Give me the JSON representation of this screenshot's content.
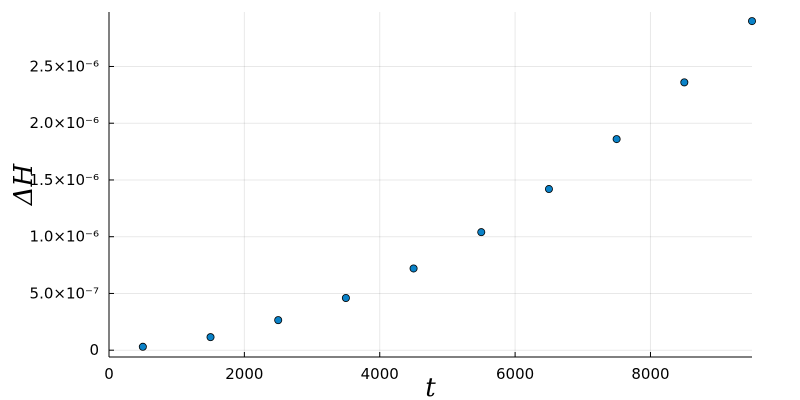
{
  "chart_data": {
    "type": "scatter",
    "title": "",
    "xlabel": "t",
    "ylabel": "ΔH",
    "xlim": [
      0,
      9500
    ],
    "ylim": [
      -6e-08,
      2.98e-06
    ],
    "grid": true,
    "legend": "none",
    "series": [
      {
        "x": [
          500,
          1500,
          2500,
          3500,
          4500,
          5500,
          6500,
          7500,
          8500,
          9500
        ],
        "y": [
          3e-08,
          1.15e-07,
          2.65e-07,
          4.6e-07,
          7.2e-07,
          1.04e-06,
          1.42e-06,
          1.86e-06,
          2.36e-06,
          2.9e-06
        ],
        "color": "#0a82c8"
      }
    ],
    "x_ticks": [
      {
        "value": 0,
        "label": "0"
      },
      {
        "value": 2000,
        "label": "2000"
      },
      {
        "value": 4000,
        "label": "4000"
      },
      {
        "value": 6000,
        "label": "6000"
      },
      {
        "value": 8000,
        "label": "8000"
      }
    ],
    "y_ticks": [
      {
        "value": 0,
        "label": "0"
      },
      {
        "value": 5e-07,
        "label": "5.0×10⁻⁷"
      },
      {
        "value": 1e-06,
        "label": "1.0×10⁻⁶"
      },
      {
        "value": 1.5e-06,
        "label": "1.5×10⁻⁶"
      },
      {
        "value": 2e-06,
        "label": "2.0×10⁻⁶"
      },
      {
        "value": 2.5e-06,
        "label": "2.5×10⁻⁶"
      }
    ]
  }
}
